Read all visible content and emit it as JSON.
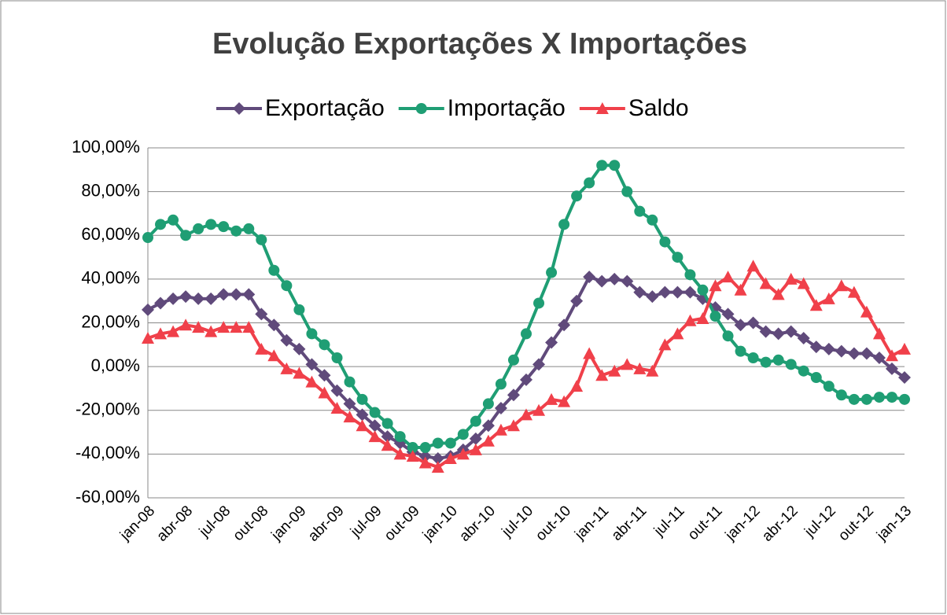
{
  "chart_data": {
    "type": "line",
    "title": "Evolução Exportações X Importações",
    "categories": [
      "jan-08",
      null,
      null,
      "abr-08",
      null,
      null,
      "jul-08",
      null,
      null,
      "out-08",
      null,
      null,
      "jan-09",
      null,
      null,
      "abr-09",
      null,
      null,
      "jul-09",
      null,
      null,
      "out-09",
      null,
      null,
      "jan-10",
      null,
      null,
      "abr-10",
      null,
      null,
      "jul-10",
      null,
      null,
      "out-10",
      null,
      null,
      "jan-11",
      null,
      null,
      "abr-11",
      null,
      null,
      "jul-11",
      null,
      null,
      "out-11",
      null,
      null,
      "jan-12",
      null,
      null,
      "abr-12",
      null,
      null,
      "jul-12",
      null,
      null,
      "out-12",
      null,
      null,
      "jan-13"
    ],
    "series": [
      {
        "name": "Exportação",
        "color": "#604a7b",
        "marker": "diamond",
        "values": [
          26,
          29,
          31,
          32,
          31,
          31,
          33,
          33,
          33,
          24,
          19,
          12,
          8,
          1,
          -4,
          -11,
          -17,
          -22,
          -27,
          -32,
          -35,
          -39,
          -41,
          -42,
          -41,
          -38,
          -33,
          -27,
          -19,
          -13,
          -6,
          1,
          11,
          19,
          30,
          41,
          39,
          40,
          39,
          34,
          32,
          34,
          34,
          34,
          31,
          27,
          24,
          19,
          20,
          16,
          15,
          16,
          13,
          9,
          8,
          7,
          6,
          6,
          4,
          -1,
          -5
        ]
      },
      {
        "name": "Importação",
        "color": "#1f9e74",
        "marker": "circle",
        "values": [
          59,
          65,
          67,
          60,
          63,
          65,
          64,
          62,
          63,
          58,
          44,
          37,
          26,
          15,
          10,
          4,
          -7,
          -15,
          -21,
          -26,
          -32,
          -37,
          -37,
          -35,
          -35,
          -31,
          -25,
          -17,
          -8,
          3,
          15,
          29,
          43,
          65,
          78,
          84,
          92,
          92,
          80,
          71,
          67,
          57,
          50,
          42,
          35,
          23,
          14,
          7,
          4,
          2,
          3,
          1,
          -2,
          -5,
          -9,
          -13,
          -15,
          -15,
          -14,
          -14,
          -15
        ]
      },
      {
        "name": "Saldo",
        "color": "#f0404a",
        "marker": "triangle",
        "values": [
          13,
          15,
          16,
          19,
          18,
          16,
          18,
          18,
          18,
          8,
          5,
          -1,
          -3,
          -7,
          -12,
          -19,
          -23,
          -27,
          -32,
          -36,
          -40,
          -41,
          -44,
          -46,
          -42,
          -40,
          -38,
          -34,
          -29,
          -27,
          -22,
          -20,
          -15,
          -16,
          -9,
          6,
          -4,
          -2,
          1,
          -1,
          -2,
          10,
          15,
          21,
          22,
          37,
          41,
          35,
          46,
          38,
          33,
          40,
          38,
          28,
          31,
          37,
          34,
          25,
          15,
          5,
          8
        ]
      }
    ],
    "ylim": [
      -60,
      100
    ],
    "yticks": [
      {
        "value": -60,
        "label": "-60,00%"
      },
      {
        "value": -40,
        "label": "-40,00%"
      },
      {
        "value": -20,
        "label": "-20,00%"
      },
      {
        "value": 0,
        "label": "0,00%"
      },
      {
        "value": 20,
        "label": "20,00%"
      },
      {
        "value": 40,
        "label": "40,00%"
      },
      {
        "value": 60,
        "label": "60,00%"
      },
      {
        "value": 80,
        "label": "80,00%"
      },
      {
        "value": 100,
        "label": "100,00%"
      }
    ],
    "grid": true,
    "legend": "top"
  }
}
